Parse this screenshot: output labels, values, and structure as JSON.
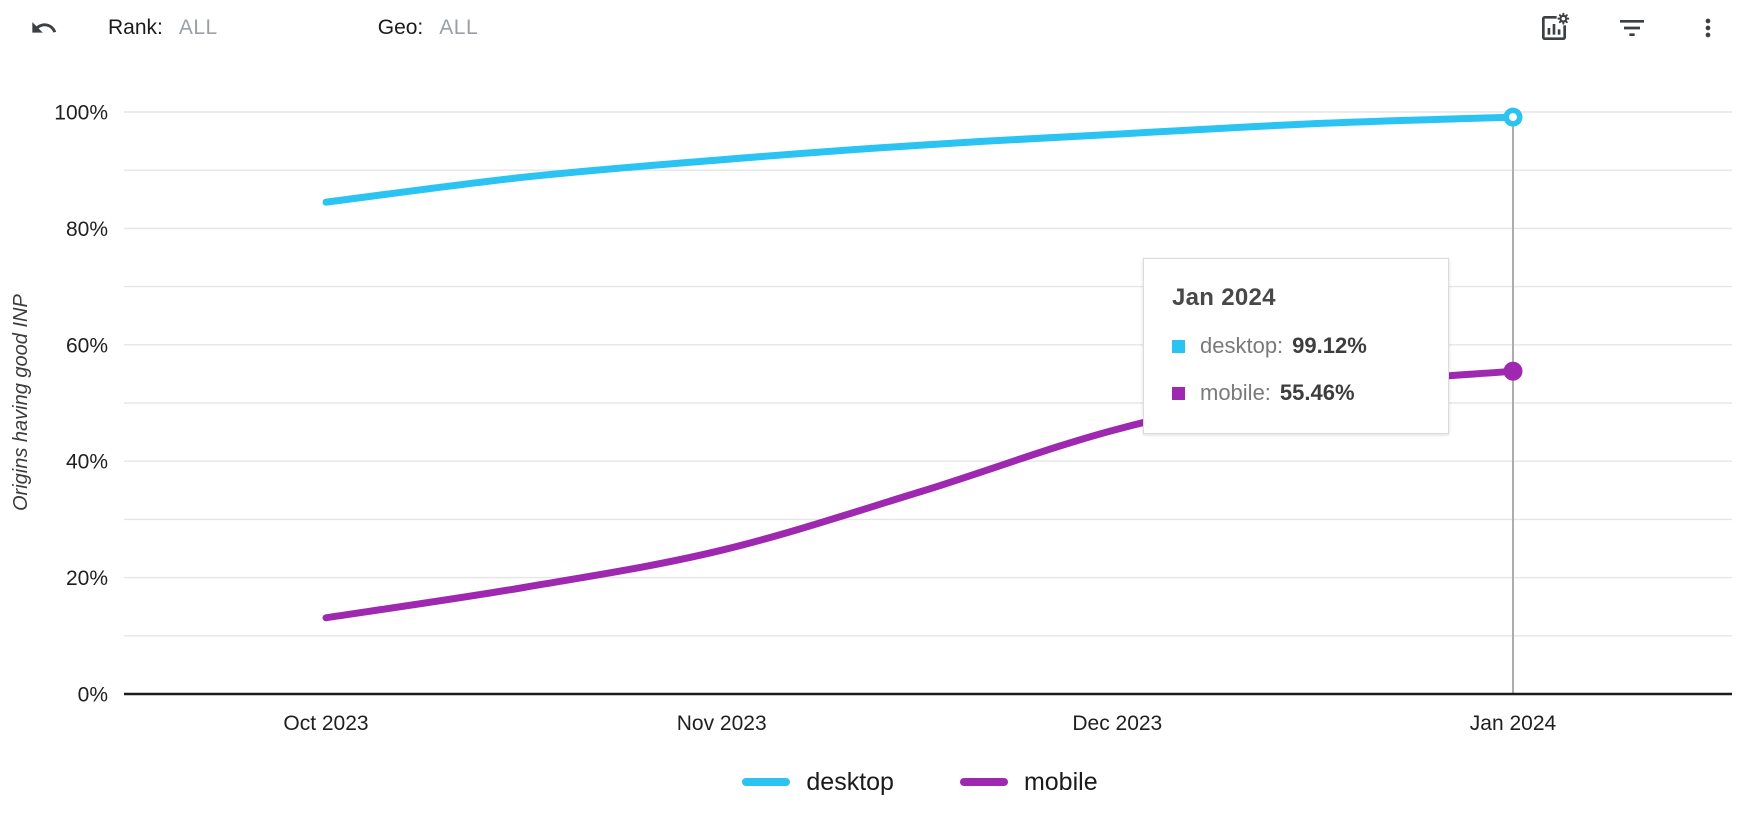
{
  "header": {
    "rank": {
      "label": "Rank:",
      "value": "ALL"
    },
    "geo": {
      "label": "Geo:",
      "value": "ALL"
    }
  },
  "chart_data": {
    "type": "line",
    "title": "",
    "xlabel": "",
    "ylabel": "Origins having good INP",
    "ylim": [
      0,
      100
    ],
    "grid": true,
    "grid_step_percent": 10,
    "y_tick_labels": [
      "0%",
      "20%",
      "40%",
      "60%",
      "80%",
      "100%"
    ],
    "x_categories": [
      "Oct 2023",
      "Nov 2023",
      "Dec 2023",
      "Jan 2024"
    ],
    "series": [
      {
        "name": "desktop",
        "color": "#2BC3F2",
        "marker": "ring",
        "x": [
          0,
          0.5,
          1,
          1.5,
          2,
          2.5,
          3
        ],
        "values": [
          84.5,
          88.8,
          91.8,
          94.3,
          96.2,
          98.0,
          99.12
        ]
      },
      {
        "name": "mobile",
        "color": "#9E28B0",
        "marker": "dot",
        "x": [
          0,
          0.5,
          1,
          1.5,
          2,
          2.5,
          3
        ],
        "values": [
          13.1,
          18.3,
          24.7,
          34.7,
          45.5,
          52.5,
          55.46
        ]
      }
    ],
    "highlight_x": 3,
    "legend_position": "bottom"
  },
  "tooltip": {
    "title": "Jan 2024",
    "rows": [
      {
        "label": "desktop:",
        "value": "99.12%",
        "color": "#2BC3F2"
      },
      {
        "label": "mobile:",
        "value": "55.46%",
        "color": "#9E28B0"
      }
    ]
  },
  "legend": {
    "items": [
      {
        "label": "desktop",
        "color": "#2BC3F2"
      },
      {
        "label": "mobile",
        "color": "#9E28B0"
      }
    ]
  }
}
